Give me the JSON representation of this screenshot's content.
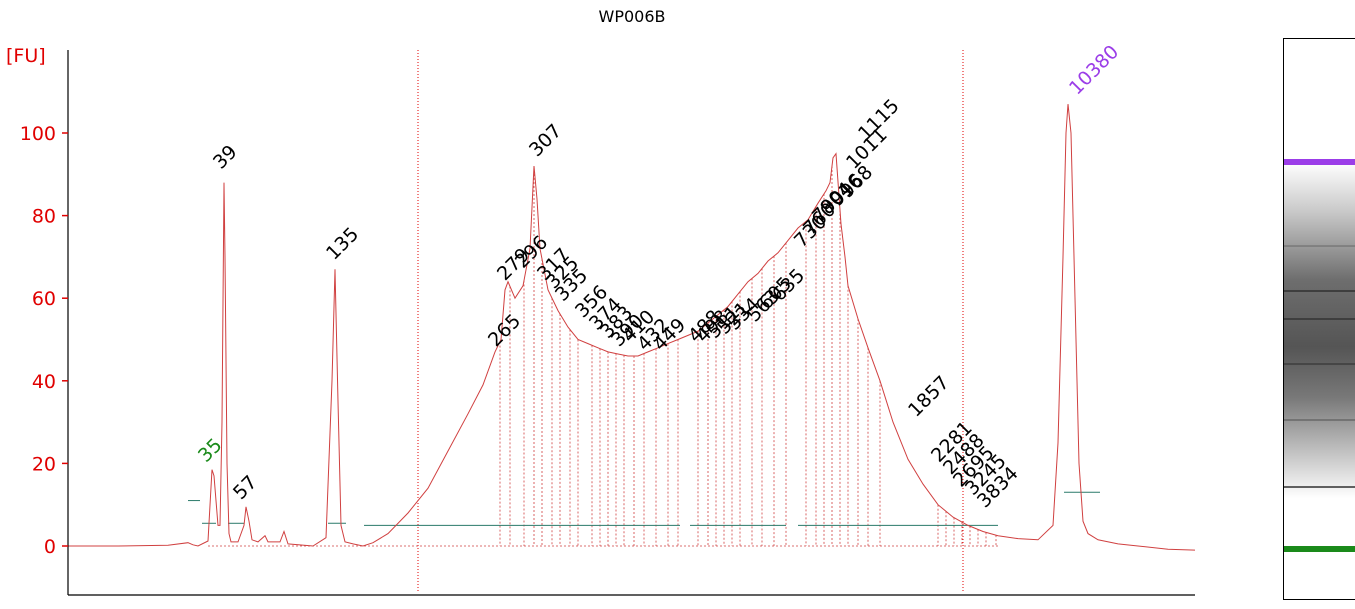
{
  "colors": {
    "axis": "#e00000",
    "trace": "#d04040",
    "marker_purple": "#9b3de8",
    "marker_green": "#1a8a1a",
    "peak_label": "#000000",
    "baseline": "#2a7a6a"
  },
  "chart_data": {
    "type": "line",
    "title": "WP006B",
    "ylabel": "[FU]",
    "xlabel": "",
    "ylim": [
      -12,
      118
    ],
    "yticks": [
      "0",
      "20",
      "40",
      "60",
      "80",
      "100"
    ],
    "grid": false,
    "series": [
      {
        "trace_points": [
          [
            0,
            0
          ],
          [
            50,
            0
          ],
          [
            100,
            0.2
          ],
          [
            120,
            0.8
          ],
          [
            125,
            0.3
          ],
          [
            130,
            0
          ],
          [
            140,
            1.2
          ],
          [
            144,
            18.5
          ],
          [
            146,
            17
          ],
          [
            150,
            5
          ],
          [
            152,
            5
          ],
          [
            154,
            30
          ],
          [
            156,
            88
          ],
          [
            157,
            70
          ],
          [
            159,
            20
          ],
          [
            161,
            3
          ],
          [
            163,
            1
          ],
          [
            170,
            1
          ],
          [
            176,
            5
          ],
          [
            178,
            9.5
          ],
          [
            181,
            6
          ],
          [
            184,
            1.5
          ],
          [
            190,
            1
          ],
          [
            197,
            2.5
          ],
          [
            200,
            1
          ],
          [
            212,
            1
          ],
          [
            216,
            3.5
          ],
          [
            220,
            0.5
          ],
          [
            245,
            0
          ],
          [
            258,
            2
          ],
          [
            264,
            40
          ],
          [
            267,
            67
          ],
          [
            270,
            35
          ],
          [
            273,
            5
          ],
          [
            277,
            1
          ],
          [
            285,
            0.5
          ],
          [
            295,
            0
          ],
          [
            305,
            0.8
          ],
          [
            320,
            3
          ],
          [
            340,
            8
          ],
          [
            360,
            14
          ],
          [
            380,
            23
          ],
          [
            400,
            32
          ],
          [
            415,
            39
          ],
          [
            427,
            47
          ],
          [
            433,
            50
          ],
          [
            437,
            62
          ],
          [
            440,
            64
          ],
          [
            447,
            60
          ],
          [
            455,
            63
          ],
          [
            462,
            72
          ],
          [
            466,
            92
          ],
          [
            469,
            84
          ],
          [
            472,
            72
          ],
          [
            480,
            62
          ],
          [
            490,
            57
          ],
          [
            500,
            53
          ],
          [
            510,
            50
          ],
          [
            520,
            49
          ],
          [
            530,
            48
          ],
          [
            540,
            47
          ],
          [
            550,
            46.5
          ],
          [
            560,
            46
          ],
          [
            570,
            46
          ],
          [
            580,
            47
          ],
          [
            590,
            48
          ],
          [
            600,
            49
          ],
          [
            610,
            50
          ],
          [
            620,
            51
          ],
          [
            630,
            52
          ],
          [
            640,
            54
          ],
          [
            650,
            56
          ],
          [
            660,
            58
          ],
          [
            670,
            61
          ],
          [
            680,
            64
          ],
          [
            690,
            66
          ],
          [
            700,
            69
          ],
          [
            710,
            71
          ],
          [
            720,
            74
          ],
          [
            730,
            77
          ],
          [
            740,
            79
          ],
          [
            750,
            83
          ],
          [
            758,
            86
          ],
          [
            762,
            88
          ],
          [
            765,
            94
          ],
          [
            768,
            95
          ],
          [
            773,
            78
          ],
          [
            777,
            70
          ],
          [
            780,
            63
          ],
          [
            790,
            55
          ],
          [
            800,
            48
          ],
          [
            812,
            40
          ],
          [
            825,
            30
          ],
          [
            840,
            21
          ],
          [
            855,
            15
          ],
          [
            870,
            10
          ],
          [
            885,
            7
          ],
          [
            900,
            5
          ],
          [
            915,
            3.5
          ],
          [
            930,
            2.5
          ],
          [
            950,
            1.8
          ],
          [
            970,
            1.5
          ],
          [
            985,
            5
          ],
          [
            990,
            25
          ],
          [
            995,
            70
          ],
          [
            998,
            100
          ],
          [
            1000,
            107
          ],
          [
            1003,
            100
          ],
          [
            1007,
            60
          ],
          [
            1011,
            20
          ],
          [
            1015,
            6
          ],
          [
            1020,
            3
          ],
          [
            1030,
            1.5
          ],
          [
            1050,
            0.5
          ],
          [
            1070,
            0
          ],
          [
            1100,
            -0.8
          ],
          [
            1127,
            -1
          ]
        ]
      }
    ],
    "peak_labels": [
      {
        "text": "35",
        "color": "green",
        "anchor": [
          142,
          21
        ]
      },
      {
        "text": "39",
        "color": "black",
        "anchor": [
          157,
          92
        ]
      },
      {
        "text": "57",
        "color": "black",
        "anchor": [
          177,
          12
        ]
      },
      {
        "text": "135",
        "color": "black",
        "anchor": [
          270,
          70
        ]
      },
      {
        "text": "265",
        "color": "black",
        "anchor": [
          432,
          49
        ]
      },
      {
        "text": "279",
        "color": "black",
        "anchor": [
          441,
          65
        ]
      },
      {
        "text": "296",
        "color": "black",
        "anchor": [
          459,
          68
        ]
      },
      {
        "text": "307",
        "color": "black",
        "anchor": [
          473,
          95
        ]
      },
      {
        "text": "317",
        "color": "black",
        "anchor": [
          481,
          65
        ]
      },
      {
        "text": "325",
        "color": "black",
        "anchor": [
          490,
          63
        ]
      },
      {
        "text": "335",
        "color": "black",
        "anchor": [
          499,
          60
        ]
      },
      {
        "text": "356",
        "color": "black",
        "anchor": [
          519,
          56
        ]
      },
      {
        "text": "374",
        "color": "black",
        "anchor": [
          533,
          53
        ]
      },
      {
        "text": "383",
        "color": "black",
        "anchor": [
          544,
          51
        ]
      },
      {
        "text": "390",
        "color": "black",
        "anchor": [
          555,
          49
        ]
      },
      {
        "text": "410",
        "color": "black",
        "anchor": [
          566,
          50
        ]
      },
      {
        "text": "432",
        "color": "black",
        "anchor": [
          581,
          48
        ]
      },
      {
        "text": "449",
        "color": "black",
        "anchor": [
          597,
          48
        ]
      },
      {
        "text": "488",
        "color": "black",
        "anchor": [
          632,
          50
        ]
      },
      {
        "text": "498",
        "color": "black",
        "anchor": [
          640,
          50
        ]
      },
      {
        "text": "511",
        "color": "black",
        "anchor": [
          651,
          51
        ]
      },
      {
        "text": "521",
        "color": "black",
        "anchor": [
          661,
          52
        ]
      },
      {
        "text": "534",
        "color": "black",
        "anchor": [
          671,
          53
        ]
      },
      {
        "text": "563",
        "color": "black",
        "anchor": [
          691,
          55
        ]
      },
      {
        "text": "605",
        "color": "black",
        "anchor": [
          703,
          58
        ]
      },
      {
        "text": "635",
        "color": "black",
        "anchor": [
          716,
          60
        ]
      },
      {
        "text": "730",
        "color": "black",
        "anchor": [
          738,
          73
        ]
      },
      {
        "text": "760",
        "color": "black",
        "anchor": [
          747,
          76
        ]
      },
      {
        "text": "790",
        "color": "black",
        "anchor": [
          756,
          79
        ]
      },
      {
        "text": "804",
        "color": "black",
        "anchor": [
          764,
          81
        ]
      },
      {
        "text": "916",
        "color": "black",
        "anchor": [
          774,
          83
        ]
      },
      {
        "text": "968",
        "color": "black",
        "anchor": [
          784,
          85
        ]
      },
      {
        "text": "1011",
        "color": "black",
        "anchor": [
          790,
          92
        ]
      },
      {
        "text": "1115",
        "color": "black",
        "anchor": [
          802,
          99
        ]
      },
      {
        "text": "1857",
        "color": "black",
        "anchor": [
          852,
          32
        ]
      },
      {
        "text": "2281",
        "color": "black",
        "anchor": [
          875,
          21
        ]
      },
      {
        "text": "2488",
        "color": "black",
        "anchor": [
          887,
          18
        ]
      },
      {
        "text": "2695",
        "color": "black",
        "anchor": [
          897,
          15
        ]
      },
      {
        "text": "3245",
        "color": "black",
        "anchor": [
          909,
          13
        ]
      },
      {
        "text": "3834",
        "color": "black",
        "anchor": [
          921,
          10
        ]
      },
      {
        "text": "10380",
        "color": "purple",
        "anchor": [
          1013,
          110
        ]
      }
    ],
    "region_boundaries": [
      350,
      895
    ],
    "dashed_peak_dividers": [
      432,
      442,
      456,
      466,
      474,
      484,
      492,
      502,
      510,
      524,
      532,
      540,
      548,
      556,
      566,
      576,
      588,
      600,
      610,
      630,
      640,
      648,
      656,
      664,
      672,
      684,
      694,
      706,
      718,
      738,
      748,
      756,
      764,
      772,
      780,
      790,
      800,
      812,
      870,
      878,
      886,
      894,
      902,
      910,
      918,
      928
    ]
  },
  "gel_lane": {
    "bands": [
      {
        "position": 0.22,
        "color": "purple",
        "strength": 1
      },
      {
        "position": 0.37,
        "color": "gray",
        "strength": 0.25
      },
      {
        "position": 0.45,
        "color": "gray",
        "strength": 0.8
      },
      {
        "position": 0.5,
        "color": "gray",
        "strength": 0.75
      },
      {
        "position": 0.58,
        "color": "gray",
        "strength": 0.6
      },
      {
        "position": 0.68,
        "color": "gray",
        "strength": 0.35
      },
      {
        "position": 0.8,
        "color": "dark",
        "strength": 0.7
      },
      {
        "position": 0.91,
        "color": "green",
        "strength": 1
      }
    ]
  }
}
